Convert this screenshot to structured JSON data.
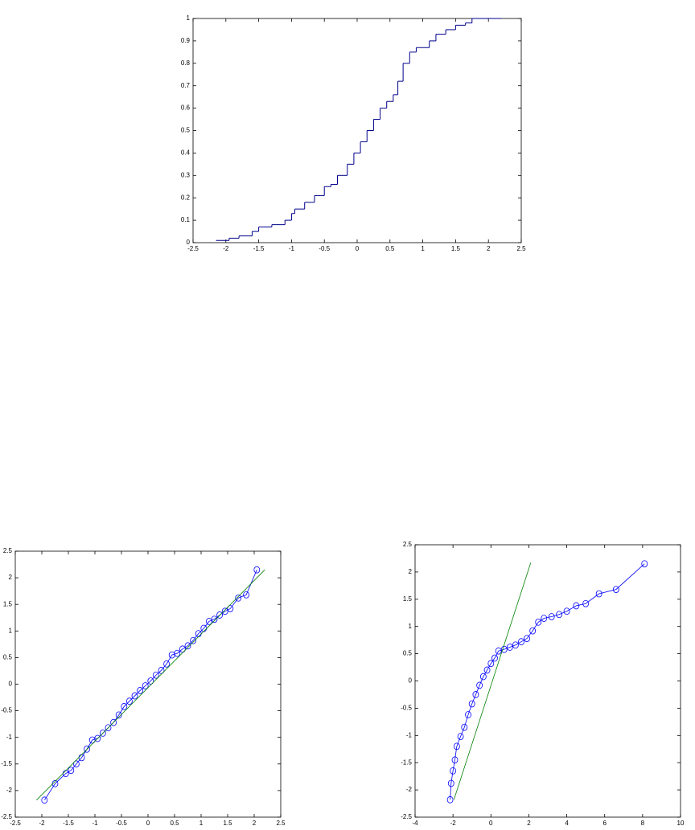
{
  "chart_data": [
    {
      "type": "step",
      "x": [
        -2.15,
        -1.95,
        -1.8,
        -1.6,
        -1.5,
        -1.3,
        -1.1,
        -1.0,
        -0.95,
        -0.8,
        -0.65,
        -0.5,
        -0.4,
        -0.3,
        -0.15,
        -0.05,
        0.05,
        0.15,
        0.25,
        0.35,
        0.45,
        0.55,
        0.62,
        0.7,
        0.8,
        0.9,
        1.1,
        1.2,
        1.35,
        1.5,
        1.65,
        1.75,
        2.2
      ],
      "values": [
        0.01,
        0.02,
        0.03,
        0.05,
        0.07,
        0.08,
        0.1,
        0.13,
        0.15,
        0.18,
        0.21,
        0.25,
        0.26,
        0.3,
        0.35,
        0.4,
        0.45,
        0.5,
        0.55,
        0.6,
        0.63,
        0.66,
        0.72,
        0.8,
        0.85,
        0.87,
        0.9,
        0.93,
        0.95,
        0.97,
        0.98,
        1,
        1
      ],
      "color": "#00008b",
      "xlim": [
        -2.5,
        2.5
      ],
      "xticks": [
        -2.5,
        -2,
        -1.5,
        -1,
        -0.5,
        0,
        0.5,
        1,
        1.5,
        2,
        2.5
      ],
      "ylim": [
        0,
        1
      ],
      "yticks": [
        0,
        0.1,
        0.2,
        0.3,
        0.4,
        0.5,
        0.6,
        0.7,
        0.8,
        0.9,
        1
      ]
    },
    {
      "type": "line",
      "series": [
        {
          "color": "#0000ff",
          "marker": "circle",
          "x": [
            -1.95,
            -1.75,
            -1.55,
            -1.45,
            -1.35,
            -1.25,
            -1.15,
            -1.05,
            -0.95,
            -0.85,
            -0.75,
            -0.65,
            -0.55,
            -0.45,
            -0.35,
            -0.25,
            -0.15,
            -0.05,
            0.05,
            0.15,
            0.25,
            0.35,
            0.45,
            0.55,
            0.65,
            0.75,
            0.85,
            0.95,
            1.05,
            1.15,
            1.25,
            1.35,
            1.45,
            1.55,
            1.7,
            1.85,
            2.05
          ],
          "values": [
            -2.18,
            -1.87,
            -1.68,
            -1.62,
            -1.5,
            -1.38,
            -1.22,
            -1.05,
            -1.02,
            -0.92,
            -0.82,
            -0.72,
            -0.58,
            -0.42,
            -0.32,
            -0.22,
            -0.12,
            -0.03,
            0.06,
            0.17,
            0.26,
            0.38,
            0.55,
            0.58,
            0.66,
            0.72,
            0.82,
            0.95,
            1.05,
            1.18,
            1.22,
            1.3,
            1.37,
            1.42,
            1.62,
            1.68,
            2.15
          ]
        },
        {
          "color": "#008000",
          "x": [
            -2.1,
            2.2
          ],
          "values": [
            -2.18,
            2.15
          ]
        }
      ],
      "xlim": [
        -2.5,
        2.5
      ],
      "xticks": [
        -2.5,
        -2,
        -1.5,
        -1,
        -0.5,
        0,
        0.5,
        1,
        1.5,
        2,
        2.5
      ],
      "ylim": [
        -2.5,
        2.5
      ],
      "yticks": [
        -2.5,
        -2,
        -1.5,
        -1,
        -0.5,
        0,
        0.5,
        1,
        1.5,
        2,
        2.5
      ]
    },
    {
      "type": "line",
      "series": [
        {
          "color": "#0000ff",
          "marker": "circle",
          "x": [
            -2.15,
            -2.1,
            -2.0,
            -1.9,
            -1.8,
            -1.6,
            -1.4,
            -1.2,
            -1.0,
            -0.8,
            -0.6,
            -0.4,
            -0.2,
            0,
            0.2,
            0.4,
            0.7,
            1.0,
            1.3,
            1.6,
            1.9,
            2.2,
            2.5,
            2.8,
            3.2,
            3.6,
            4.0,
            4.5,
            5.0,
            5.7,
            6.6,
            8.1
          ],
          "values": [
            -2.18,
            -1.88,
            -1.65,
            -1.45,
            -1.2,
            -1.02,
            -0.85,
            -0.62,
            -0.42,
            -0.25,
            -0.08,
            0.08,
            0.2,
            0.32,
            0.42,
            0.55,
            0.58,
            0.62,
            0.66,
            0.72,
            0.78,
            0.92,
            1.08,
            1.15,
            1.18,
            1.22,
            1.28,
            1.38,
            1.42,
            1.6,
            1.68,
            2.15
          ]
        },
        {
          "color": "#008000",
          "x": [
            -1.95,
            2.1
          ],
          "values": [
            -2.18,
            2.17
          ]
        }
      ],
      "xlim": [
        -4,
        10
      ],
      "xticks": [
        -4,
        -2,
        0,
        2,
        4,
        6,
        8,
        10
      ],
      "ylim": [
        -2.5,
        2.5
      ],
      "yticks": [
        -2.5,
        -2,
        -1.5,
        -1,
        -0.5,
        0,
        0.5,
        1,
        1.5,
        2,
        2.5
      ]
    }
  ]
}
